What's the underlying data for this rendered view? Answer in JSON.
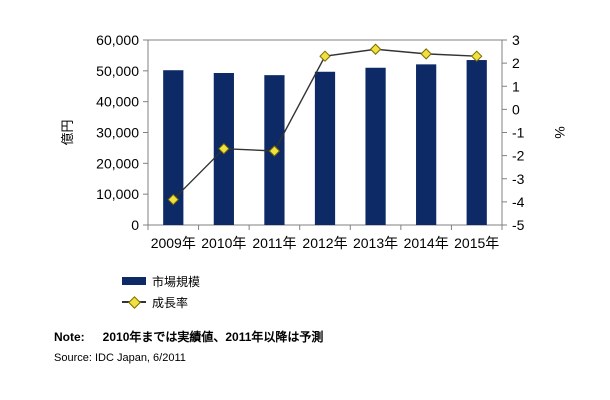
{
  "chart_data": {
    "type": "bar+line",
    "categories": [
      "2009年",
      "2010年",
      "2011年",
      "2012年",
      "2013年",
      "2014年",
      "2015年"
    ],
    "series": [
      {
        "name": "市場規模",
        "type": "bar",
        "axis": "left",
        "color": "#0d2a66",
        "values": [
          50200,
          49300,
          48600,
          49700,
          51000,
          52100,
          53500
        ]
      },
      {
        "name": "成長率",
        "type": "line",
        "axis": "right",
        "color": "#333333",
        "marker_color": "#f0e040",
        "values": [
          -3.9,
          -1.7,
          -1.8,
          2.3,
          2.6,
          2.4,
          2.3
        ]
      }
    ],
    "ylabel": "億円",
    "ylim": [
      0,
      60000
    ],
    "yticks": [
      0,
      10000,
      20000,
      30000,
      40000,
      50000,
      60000
    ],
    "ytick_labels": [
      "0",
      "10,000",
      "20,000",
      "30,000",
      "40,000",
      "50,000",
      "60,000"
    ],
    "y2label": "%",
    "y2lim": [
      -5,
      3
    ],
    "y2ticks": [
      -5,
      -4,
      -3,
      -2,
      -1,
      0,
      1,
      2,
      3
    ],
    "grid": false,
    "legend_position": "bottom-left"
  },
  "note": {
    "label": "Note:",
    "text": "2010年までは実績値、2011年以降は予測"
  },
  "source": "Source: IDC Japan, 6/2011"
}
